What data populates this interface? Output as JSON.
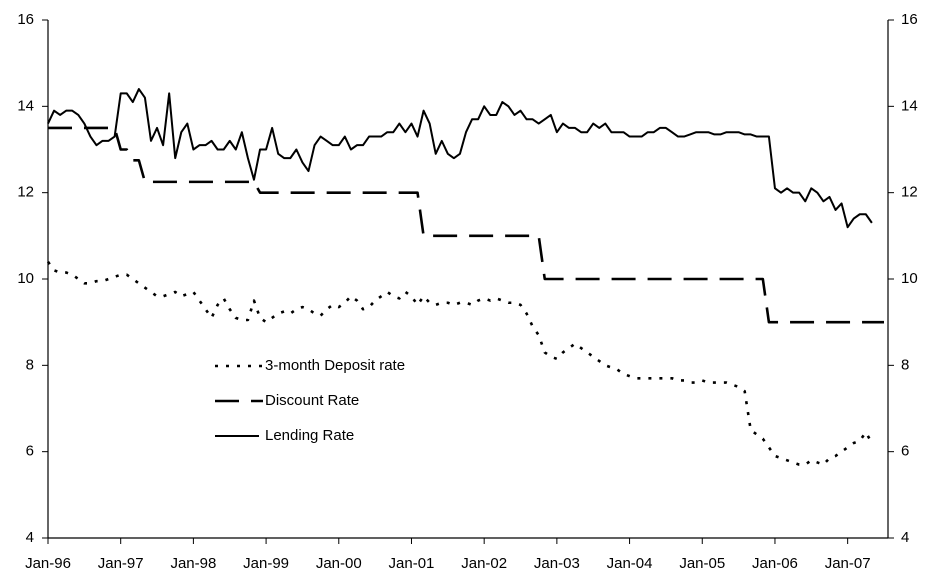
{
  "chart_data": {
    "type": "line",
    "categories": [
      "Jan-96",
      null,
      null,
      null,
      null,
      null,
      null,
      null,
      null,
      null,
      null,
      null,
      "Jan-97",
      null,
      null,
      null,
      null,
      null,
      null,
      null,
      null,
      null,
      null,
      null,
      "Jan-98",
      null,
      null,
      null,
      null,
      null,
      null,
      null,
      null,
      null,
      null,
      null,
      "Jan-99",
      null,
      null,
      null,
      null,
      null,
      null,
      null,
      null,
      null,
      null,
      null,
      "Jan-00",
      null,
      null,
      null,
      null,
      null,
      null,
      null,
      null,
      null,
      null,
      null,
      "Jan-01",
      null,
      null,
      null,
      null,
      null,
      null,
      null,
      null,
      null,
      null,
      null,
      "Jan-02",
      null,
      null,
      null,
      null,
      null,
      null,
      null,
      null,
      null,
      null,
      null,
      "Jan-03",
      null,
      null,
      null,
      null,
      null,
      null,
      null,
      null,
      null,
      null,
      null,
      "Jan-04",
      null,
      null,
      null,
      null,
      null,
      null,
      null,
      null,
      null,
      null,
      null,
      "Jan-05",
      null,
      null,
      null,
      null,
      null,
      null,
      null,
      null,
      null,
      null,
      null,
      "Jan-06",
      null,
      null,
      null,
      null,
      null,
      null,
      null,
      null,
      null,
      null,
      null,
      "Jan-07",
      null,
      null,
      null,
      null,
      null,
      null
    ],
    "series": [
      {
        "name": "3-month Deposit rate",
        "color": "#000000",
        "dash": "dotted",
        "values": [
          10.4,
          10.2,
          10.15,
          10.15,
          10.1,
          10.0,
          9.9,
          9.9,
          9.95,
          9.95,
          10.0,
          10.05,
          10.1,
          10.1,
          10.0,
          9.9,
          9.8,
          9.7,
          9.6,
          9.6,
          9.65,
          9.7,
          9.6,
          9.65,
          9.7,
          9.5,
          9.3,
          9.1,
          9.4,
          9.55,
          9.3,
          9.1,
          9.05,
          9.05,
          9.5,
          9.1,
          9.0,
          9.1,
          9.2,
          9.25,
          9.2,
          9.3,
          9.35,
          9.3,
          9.2,
          9.15,
          9.3,
          9.4,
          9.35,
          9.45,
          9.6,
          9.5,
          9.3,
          9.35,
          9.5,
          9.6,
          9.7,
          9.6,
          9.55,
          9.7,
          9.6,
          9.4,
          9.6,
          9.45,
          9.4,
          9.45,
          9.45,
          9.4,
          9.45,
          9.45,
          9.4,
          9.5,
          9.55,
          9.5,
          9.55,
          9.5,
          9.45,
          9.45,
          9.4,
          9.2,
          8.9,
          8.7,
          8.3,
          8.2,
          8.15,
          8.3,
          8.4,
          8.5,
          8.4,
          8.3,
          8.2,
          8.1,
          8.0,
          7.95,
          7.9,
          7.8,
          7.75,
          7.7,
          7.7,
          7.7,
          7.7,
          7.7,
          7.7,
          7.7,
          7.65,
          7.65,
          7.6,
          7.6,
          7.65,
          7.6,
          7.6,
          7.6,
          7.6,
          7.55,
          7.5,
          7.4,
          6.5,
          6.4,
          6.3,
          6.1,
          5.9,
          5.85,
          5.8,
          5.75,
          5.7,
          5.7,
          5.8,
          5.75,
          5.7,
          5.85,
          5.9,
          6.0,
          6.1,
          6.2,
          6.25,
          6.45,
          6.2,
          null,
          null
        ]
      },
      {
        "name": "Discount Rate",
        "color": "#000000",
        "dash": "dashed",
        "values": [
          13.5,
          13.5,
          13.5,
          13.5,
          13.5,
          13.5,
          13.5,
          13.5,
          13.5,
          13.5,
          13.5,
          13.5,
          13,
          13,
          12.75,
          12.75,
          12.25,
          12.25,
          12.25,
          12.25,
          12.25,
          12.25,
          12.25,
          12.25,
          12.25,
          12.25,
          12.25,
          12.25,
          12.25,
          12.25,
          12.25,
          12.25,
          12.25,
          12.25,
          12.25,
          12,
          12,
          12,
          12,
          12,
          12,
          12,
          12,
          12,
          12,
          12,
          12,
          12,
          12,
          12,
          12,
          12,
          12,
          12,
          12,
          12,
          12,
          12,
          12,
          12,
          12,
          12,
          11,
          11,
          11,
          11,
          11,
          11,
          11,
          11,
          11,
          11,
          11,
          11,
          11,
          11,
          11,
          11,
          11,
          11,
          11,
          11,
          10,
          10,
          10,
          10,
          10,
          10,
          10,
          10,
          10,
          10,
          10,
          10,
          10,
          10,
          10,
          10,
          10,
          10,
          10,
          10,
          10,
          10,
          10,
          10,
          10,
          10,
          10,
          10,
          10,
          10,
          10,
          10,
          10,
          10,
          10,
          10,
          10,
          9,
          9,
          9,
          9,
          9,
          9,
          9,
          9,
          9,
          9,
          9,
          9,
          9,
          9,
          9,
          9,
          9,
          9,
          9,
          9
        ]
      },
      {
        "name": "Lending Rate",
        "color": "#000000",
        "dash": "solid",
        "values": [
          13.6,
          13.9,
          13.8,
          13.9,
          13.9,
          13.8,
          13.6,
          13.3,
          13.1,
          13.2,
          13.2,
          13.3,
          14.3,
          14.3,
          14.1,
          14.4,
          14.2,
          13.2,
          13.5,
          13.1,
          14.3,
          12.8,
          13.4,
          13.6,
          13.0,
          13.1,
          13.1,
          13.2,
          13.0,
          13.0,
          13.2,
          13.0,
          13.4,
          12.8,
          12.3,
          13.0,
          13.0,
          13.5,
          12.9,
          12.8,
          12.8,
          13.0,
          12.7,
          12.5,
          13.1,
          13.3,
          13.2,
          13.1,
          13.1,
          13.3,
          13.0,
          13.1,
          13.1,
          13.3,
          13.3,
          13.3,
          13.4,
          13.4,
          13.6,
          13.4,
          13.6,
          13.3,
          13.9,
          13.6,
          12.9,
          13.2,
          12.9,
          12.8,
          12.9,
          13.4,
          13.7,
          13.7,
          14.0,
          13.8,
          13.8,
          14.1,
          14.0,
          13.8,
          13.9,
          13.7,
          13.7,
          13.6,
          13.7,
          13.8,
          13.4,
          13.6,
          13.5,
          13.5,
          13.4,
          13.4,
          13.6,
          13.5,
          13.6,
          13.4,
          13.4,
          13.4,
          13.3,
          13.3,
          13.3,
          13.4,
          13.4,
          13.5,
          13.5,
          13.4,
          13.3,
          13.3,
          13.35,
          13.4,
          13.4,
          13.4,
          13.35,
          13.35,
          13.4,
          13.4,
          13.4,
          13.35,
          13.35,
          13.3,
          13.3,
          13.3,
          12.1,
          12.0,
          12.1,
          12.0,
          12.0,
          11.8,
          12.1,
          12.0,
          11.8,
          11.9,
          11.6,
          11.75,
          11.2,
          11.4,
          11.5,
          11.5,
          11.3,
          null,
          null
        ]
      }
    ],
    "ylim": [
      4,
      16
    ],
    "yticks": [
      4,
      6,
      8,
      10,
      12,
      14,
      16
    ],
    "y2lim": [
      4,
      16
    ],
    "y2ticks": [
      4,
      6,
      8,
      10,
      12,
      14,
      16
    ],
    "grid": false,
    "legend": "center-left"
  }
}
